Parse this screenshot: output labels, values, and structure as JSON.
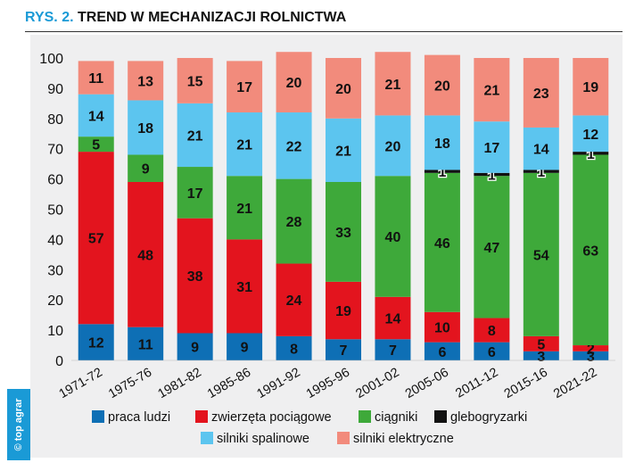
{
  "header": {
    "prefix": "RYS. 2.",
    "title": "TREND W MECHANIZACJI ROLNICTWA"
  },
  "credit": "© top agrar",
  "chart_data": {
    "type": "bar",
    "stacked": true,
    "title": "TREND W MECHANIZACJI ROLNICTWA",
    "xlabel": "",
    "ylabel": "",
    "ylim": [
      0,
      100
    ],
    "yticks": [
      0,
      10,
      20,
      30,
      40,
      50,
      60,
      70,
      80,
      90,
      100
    ],
    "grid": false,
    "legend_position": "bottom",
    "categories": [
      "1971-72",
      "1975-76",
      "1981-82",
      "1985-86",
      "1991-92",
      "1995-96",
      "2001-02",
      "2005-06",
      "2011-12",
      "2015-16",
      "2021-22"
    ],
    "series": [
      {
        "name": "praca ludzi",
        "color": "#0e6fb5",
        "values": [
          12,
          11,
          9,
          9,
          8,
          7,
          7,
          6,
          6,
          3,
          3
        ],
        "labels": [
          "12",
          "11",
          "9",
          "9",
          "8",
          "7",
          "7",
          "6",
          "6",
          "3",
          "3"
        ]
      },
      {
        "name": "zwierzęta pociągowe",
        "color": "#e3141e",
        "values": [
          57,
          48,
          38,
          31,
          24,
          19,
          14,
          10,
          8,
          5,
          2
        ],
        "labels": [
          "57",
          "48",
          "38",
          "31",
          "24",
          "19",
          "14",
          "10",
          "8",
          "5",
          "2"
        ]
      },
      {
        "name": "ciągniki",
        "color": "#3ea93a",
        "values": [
          5,
          9,
          17,
          21,
          28,
          33,
          40,
          46,
          47,
          54,
          63
        ],
        "labels": [
          "5",
          "9",
          "17",
          "21",
          "28",
          "33",
          "40",
          "46",
          "47",
          "54",
          "63"
        ]
      },
      {
        "name": "glebogryzarki",
        "color": "#111111",
        "values": [
          0,
          0,
          0,
          0,
          0,
          0,
          0,
          1,
          1,
          1,
          1
        ],
        "labels": [
          "",
          "",
          "",
          "",
          "",
          "",
          "",
          "1",
          "1",
          "1",
          "1"
        ]
      },
      {
        "name": "silniki spalinowe",
        "color": "#5cc5ef",
        "values": [
          14,
          18,
          21,
          21,
          22,
          21,
          20,
          18,
          17,
          14,
          12
        ],
        "labels": [
          "14",
          "18",
          "21",
          "21",
          "22",
          "21",
          "20",
          "18",
          "17",
          "14",
          "12"
        ]
      },
      {
        "name": "silniki elektryczne",
        "color": "#f28b7c",
        "values": [
          11,
          13,
          15,
          17,
          20,
          20,
          21,
          20,
          21,
          23,
          19
        ],
        "labels": [
          "11",
          "13",
          "15",
          "17",
          "20",
          "20",
          "21",
          "20",
          "21",
          "23",
          "19"
        ]
      }
    ]
  }
}
